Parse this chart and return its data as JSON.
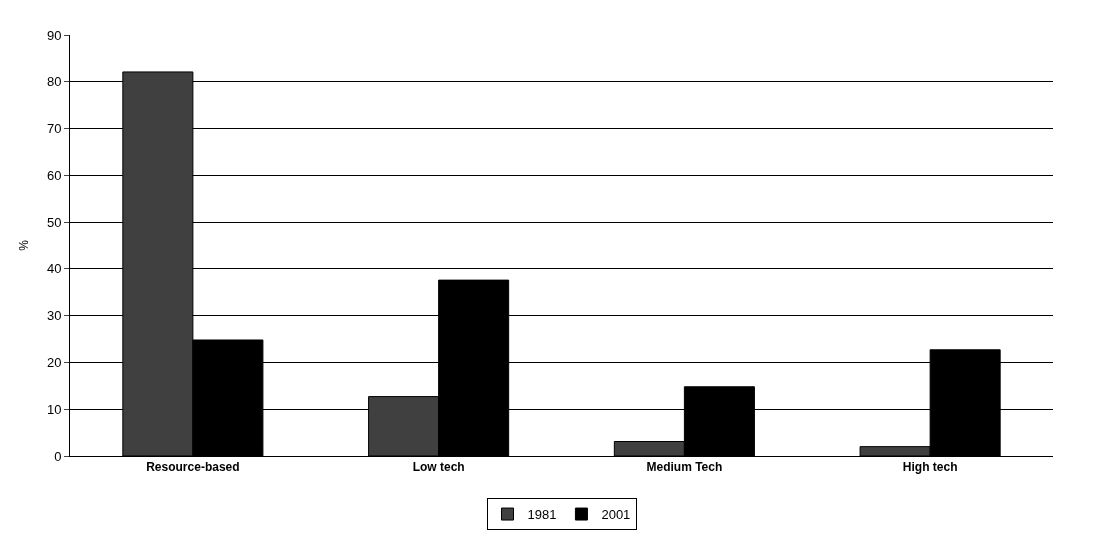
{
  "chart_data": {
    "type": "bar",
    "ylabel": "%",
    "categories": [
      "Resource-based",
      "Low tech",
      "Medium Tech",
      "High tech"
    ],
    "series": [
      {
        "name": "1981",
        "color": "#404040",
        "values": [
          82.1,
          12.7,
          3.1,
          2.0
        ]
      },
      {
        "name": "2001",
        "color": "#000000",
        "values": [
          24.8,
          37.6,
          14.8,
          22.7
        ]
      }
    ],
    "ylim": [
      0,
      90
    ],
    "yticks": [
      0,
      10,
      20,
      30,
      40,
      50,
      60,
      70,
      80,
      90
    ],
    "grid": "y",
    "legend": "bottom"
  }
}
